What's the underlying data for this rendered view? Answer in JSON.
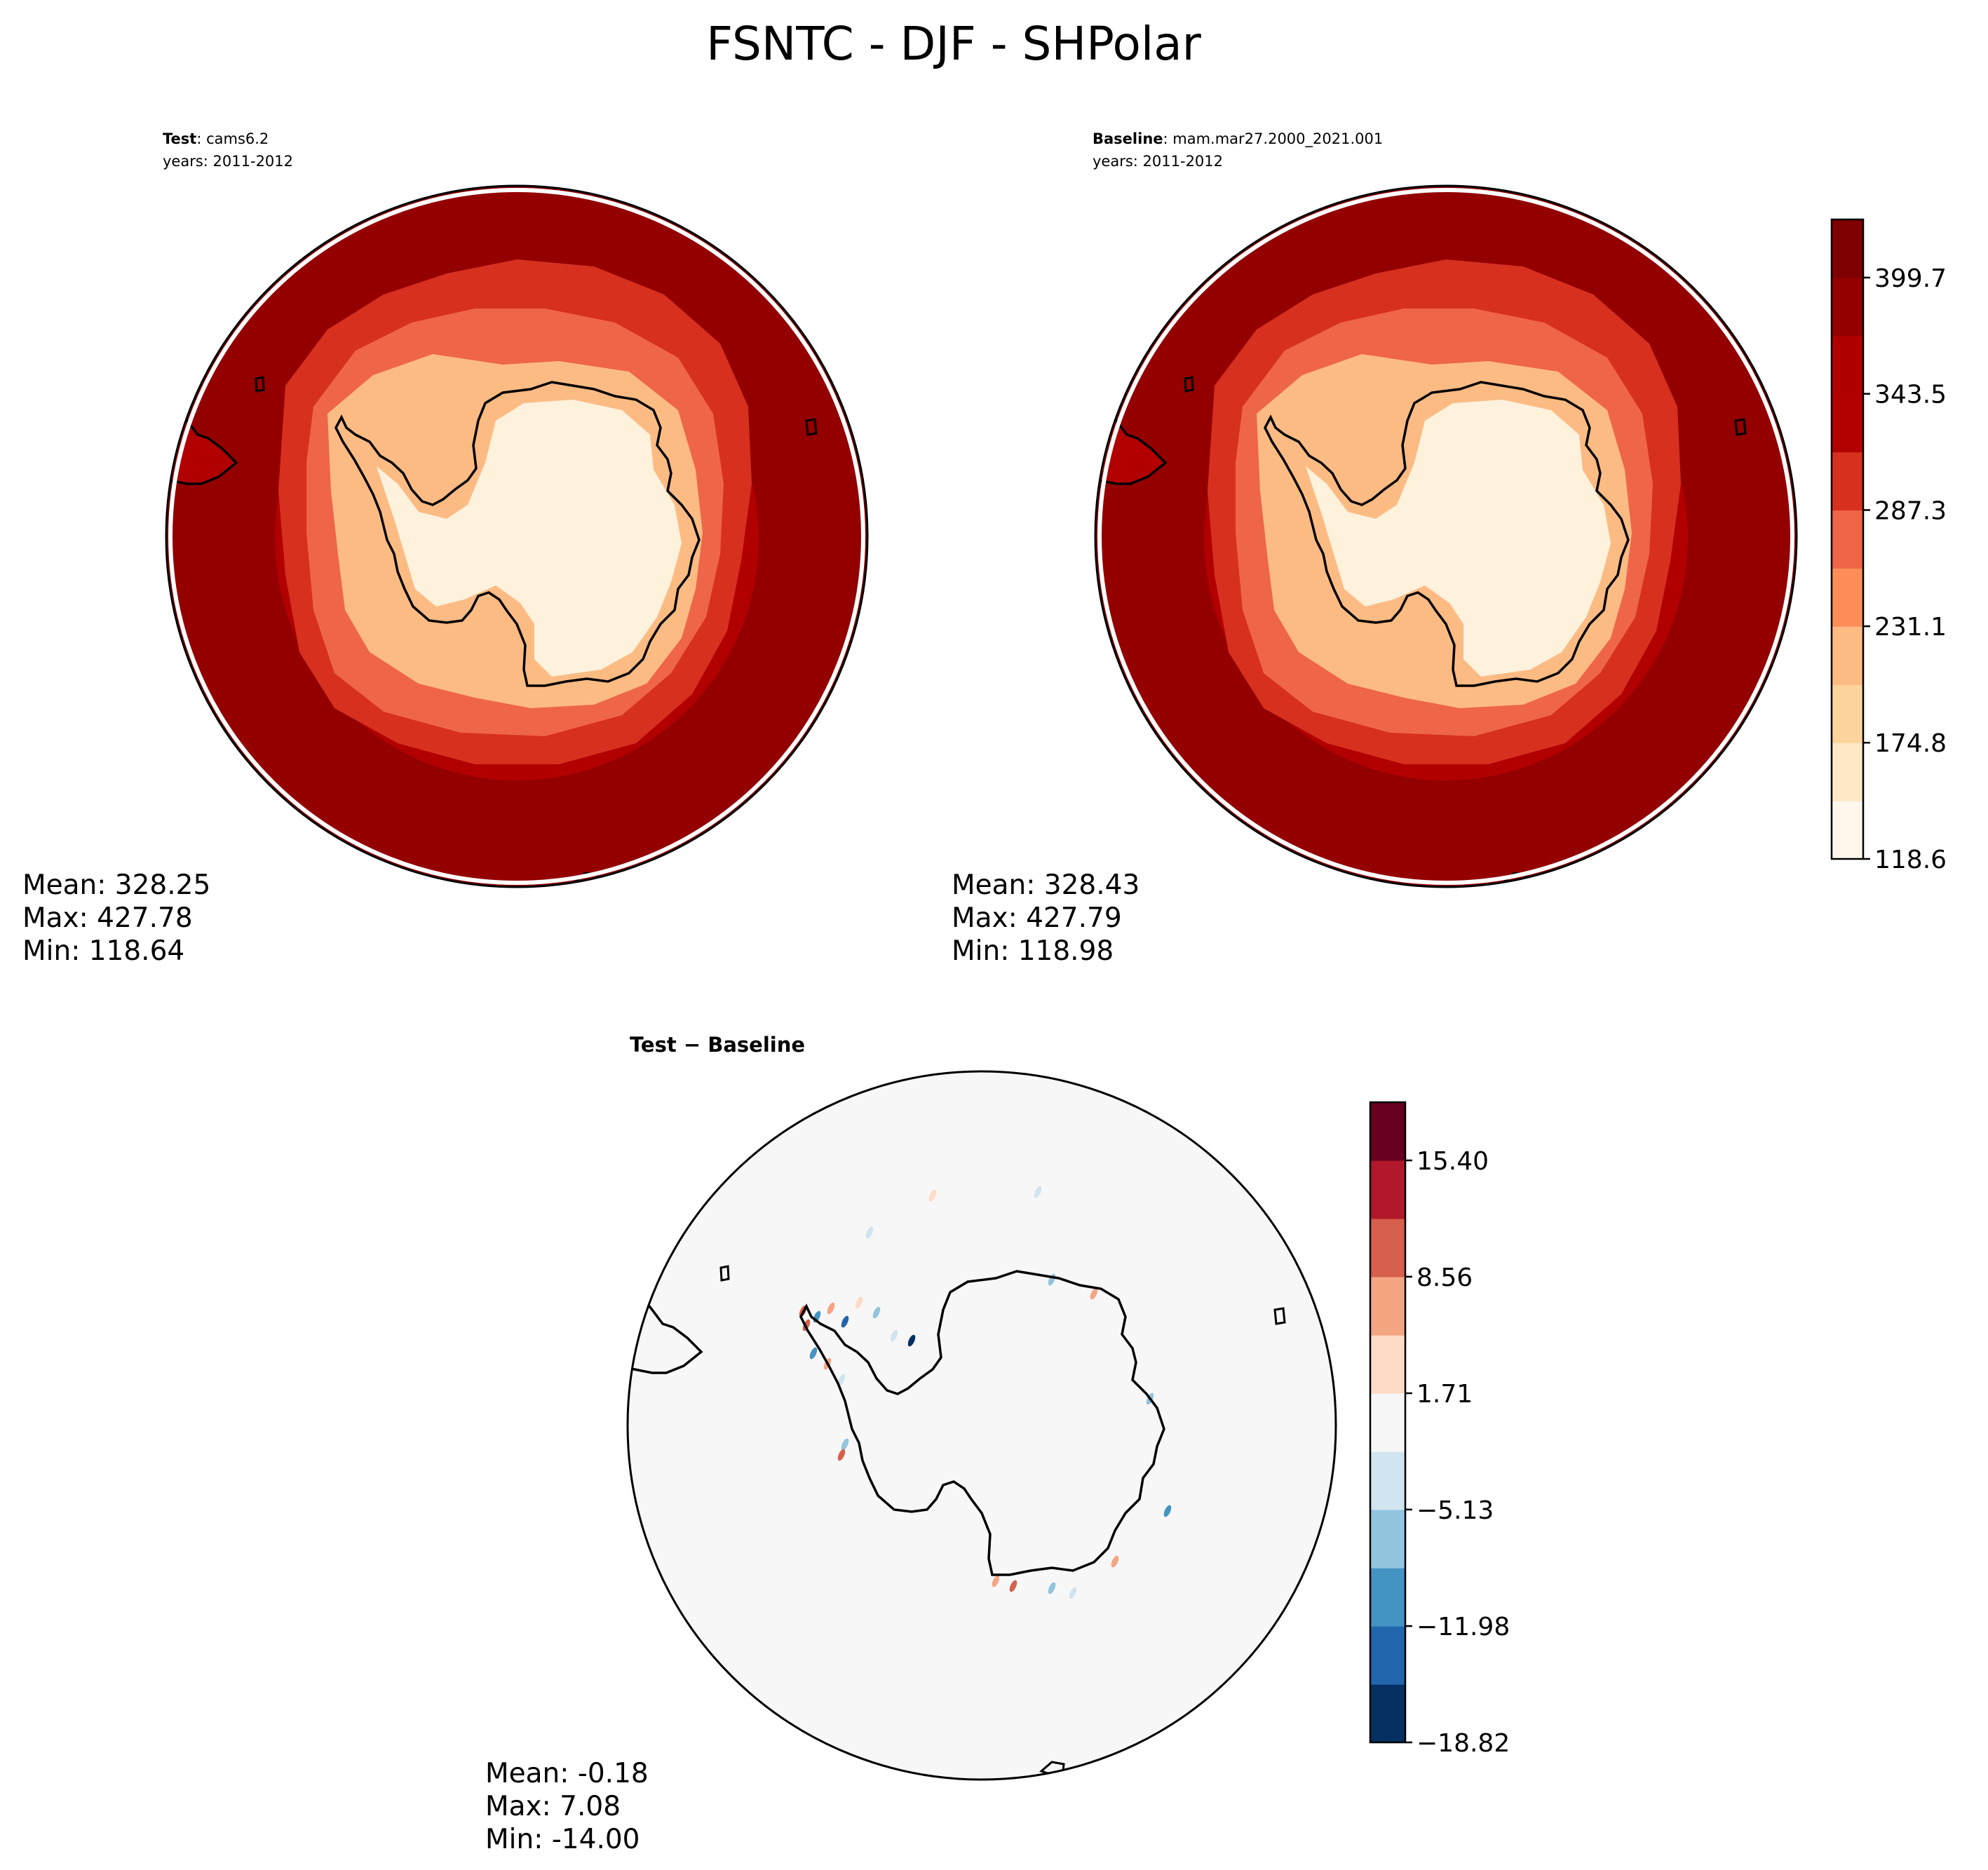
{
  "figure": {
    "title": "FSNTC - DJF - SHPolar"
  },
  "panels": {
    "test": {
      "label_bold": "Test",
      "label_value": ": cams6.2",
      "years": "years: 2011-2012",
      "stats": {
        "mean": "Mean: 328.25",
        "max": "Max: 427.78",
        "min": "Min: 118.64"
      }
    },
    "baseline": {
      "label_bold": "Baseline",
      "label_value": ": mam.mar27.2000_2021.001",
      "years": "years: 2011-2012",
      "stats": {
        "mean": "Mean: 328.43",
        "max": "Max: 427.79",
        "min": "Min: 118.98"
      }
    },
    "diff": {
      "title": "Test − Baseline",
      "stats": {
        "mean": "Mean: -0.18",
        "max": "Max:  7.08",
        "min": "Min: -14.00"
      }
    }
  },
  "chart_data": [
    {
      "type": "heatmap",
      "projection": "south-polar-stereographic",
      "panel": "Test",
      "stats": {
        "mean": 328.25,
        "max": 427.78,
        "min": 118.64
      },
      "colormap": "OrRd",
      "levels": [
        118.6,
        146.7,
        174.8,
        202.9,
        231.1,
        259.2,
        287.3,
        315.4,
        343.5,
        371.6,
        399.7,
        427.8
      ],
      "zones": [
        {
          "zone": "outer ocean ring",
          "value": 413.8
        },
        {
          "zone": "inner ocean ring",
          "value": 385.7
        },
        {
          "zone": "sea ice edge",
          "value": 329.5
        },
        {
          "zone": "sea ice",
          "value": 273.2
        },
        {
          "zone": "coastal ice",
          "value": 217.0
        },
        {
          "zone": "antarctic interior",
          "value": 132.7
        }
      ]
    },
    {
      "type": "heatmap",
      "projection": "south-polar-stereographic",
      "panel": "Baseline",
      "stats": {
        "mean": 328.43,
        "max": 427.79,
        "min": 118.98
      },
      "colormap": "OrRd",
      "levels": [
        118.6,
        146.7,
        174.8,
        202.9,
        231.1,
        259.2,
        287.3,
        315.4,
        343.5,
        371.6,
        399.7,
        427.8
      ],
      "colorbar_ticks": [
        "118.6",
        "174.8",
        "231.1",
        "287.3",
        "343.5",
        "399.7"
      ],
      "zones": [
        {
          "zone": "outer ocean ring",
          "value": 413.8
        },
        {
          "zone": "inner ocean ring",
          "value": 385.7
        },
        {
          "zone": "sea ice edge",
          "value": 329.5
        },
        {
          "zone": "sea ice",
          "value": 273.2
        },
        {
          "zone": "coastal ice",
          "value": 217.0
        },
        {
          "zone": "antarctic interior",
          "value": 132.7
        }
      ]
    },
    {
      "type": "heatmap",
      "projection": "south-polar-stereographic",
      "panel": "Test − Baseline",
      "stats": {
        "mean": -0.18,
        "max": 7.08,
        "min": -14.0
      },
      "colormap": "RdBu_r",
      "levels": [
        -18.82,
        -15.4,
        -11.98,
        -8.56,
        -5.13,
        -1.71,
        1.71,
        5.13,
        8.56,
        11.98,
        15.4,
        18.82
      ],
      "colorbar_ticks": [
        "−18.82",
        "−11.98",
        "−5.13",
        "1.71",
        "8.56",
        "15.40"
      ],
      "background_value": 0.0
    }
  ]
}
